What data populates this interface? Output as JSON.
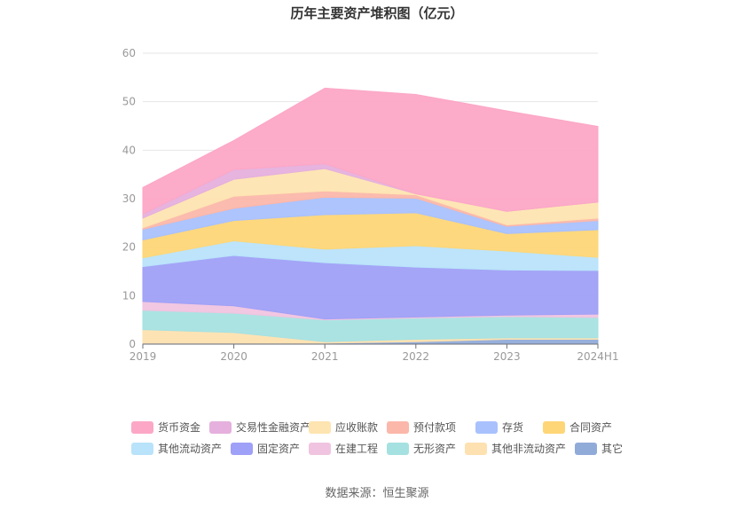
{
  "chart_data": {
    "type": "area",
    "stacked": true,
    "title": "历年主要资产堆积图（亿元）",
    "categories": [
      "2019",
      "2020",
      "2021",
      "2022",
      "2023",
      "2024H1"
    ],
    "ylim": [
      0,
      60
    ],
    "yticks": [
      "0",
      "10",
      "20",
      "30",
      "40",
      "50",
      "60"
    ],
    "grid": true,
    "legend_position": "bottom",
    "series": [
      {
        "name": "其它",
        "color": "#91abd9",
        "values": [
          0.2,
          0.2,
          0.2,
          0.5,
          1.0,
          1.0
        ]
      },
      {
        "name": "其他非流动资产",
        "color": "#fde1b0",
        "values": [
          2.8,
          2.2,
          0.3,
          0.5,
          0.3,
          0.3
        ]
      },
      {
        "name": "无形资产",
        "color": "#a6e1e1",
        "values": [
          4.0,
          4.0,
          4.5,
          4.4,
          4.4,
          4.2
        ]
      },
      {
        "name": "在建工程",
        "color": "#f0c4e0",
        "values": [
          1.8,
          1.5,
          0.2,
          0.2,
          0.3,
          0.7
        ]
      },
      {
        "name": "固定资产",
        "color": "#9fa0f7",
        "values": [
          7.2,
          10.4,
          11.6,
          10.3,
          9.3,
          9.0
        ]
      },
      {
        "name": "其他流动资产",
        "color": "#b9e3fa",
        "values": [
          1.8,
          3.0,
          2.8,
          4.4,
          3.9,
          2.7
        ]
      },
      {
        "name": "合同资产",
        "color": "#fed677",
        "values": [
          3.7,
          4.2,
          7.1,
          6.8,
          3.6,
          5.7
        ]
      },
      {
        "name": "存货",
        "color": "#a9c1fd",
        "values": [
          2.2,
          2.5,
          3.6,
          3.0,
          1.5,
          1.9
        ]
      },
      {
        "name": "预付款项",
        "color": "#fbb7aa",
        "values": [
          0.3,
          2.5,
          1.3,
          0.7,
          0.3,
          0.5
        ]
      },
      {
        "name": "应收账款",
        "color": "#fee4b1",
        "values": [
          2.0,
          3.5,
          4.6,
          0.2,
          2.8,
          3.3
        ]
      },
      {
        "name": "交易性金融资产",
        "color": "#e5b0dd",
        "values": [
          0.8,
          2.0,
          1.0,
          0.0,
          0.0,
          0.0
        ]
      },
      {
        "name": "货币资金",
        "color": "#fca7c6",
        "values": [
          5.5,
          6.0,
          15.6,
          20.5,
          20.7,
          15.6
        ]
      }
    ],
    "legend_order": [
      "货币资金",
      "交易性金融资产",
      "应收账款",
      "预付款项",
      "存货",
      "合同资产",
      "其他流动资产",
      "固定资产",
      "在建工程",
      "无形资产",
      "其他非流动资产",
      "其它"
    ]
  },
  "source_text": "数据来源：恒生聚源"
}
